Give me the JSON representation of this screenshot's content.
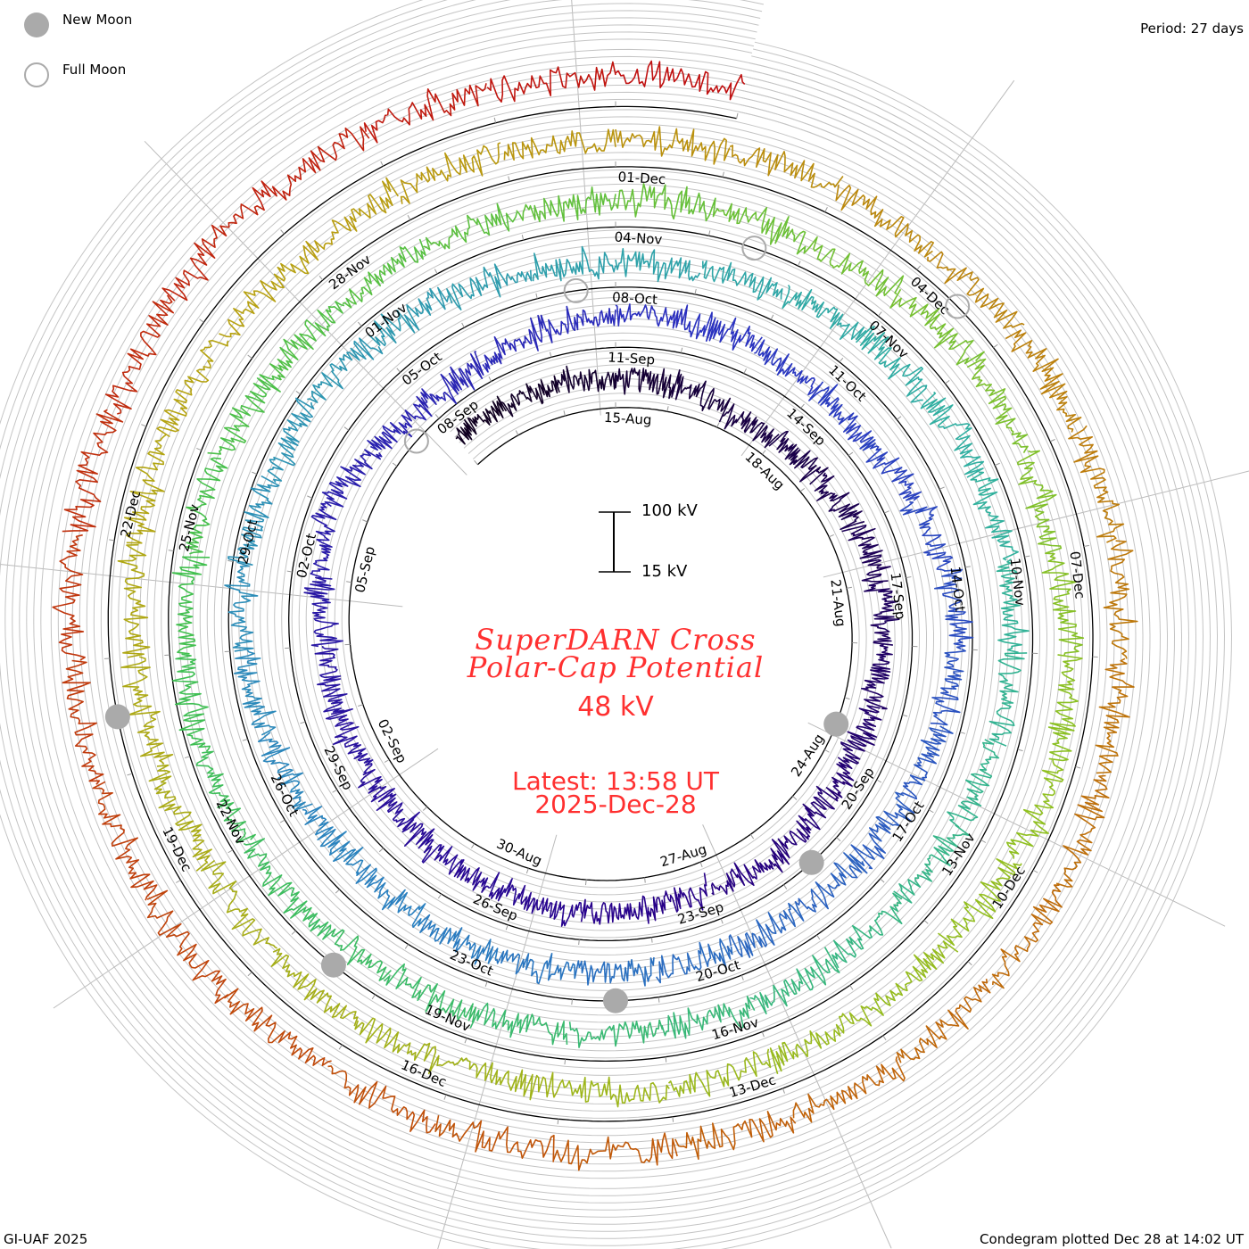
{
  "legend": {
    "new_moon": "New Moon",
    "full_moon": "Full Moon",
    "new_moon_color": "#aaaaaa",
    "full_moon_color": "#aaaaaa"
  },
  "period": "Period: 27 days",
  "footer_left": "GI-UAF 2025",
  "footer_right": "Condegram plotted Dec 28 at 14:02 UT",
  "center": {
    "title_line1": "SuperDARN Cross",
    "title_line2": "Polar-Cap Potential",
    "current_value": "48 kV",
    "latest_line1": "Latest: 13:58 UT",
    "latest_line2": "2025-Dec-28",
    "text_color": "#ff3030"
  },
  "scale_bar": {
    "top_label": "100 kV",
    "bottom_label": "15 kV"
  },
  "chart_data": {
    "type": "line",
    "subtype": "condegram-spiral",
    "title": "SuperDARN Cross Polar-Cap Potential",
    "units": "kV",
    "period_days": 27,
    "start_date": "2025-08-12",
    "end_date": "2025-12-28",
    "scale_kV": [
      15,
      100
    ],
    "daily_values_kV": [
      58,
      62,
      60,
      55,
      57,
      38,
      40,
      45,
      58,
      62,
      60,
      55,
      52,
      57,
      60,
      55,
      58,
      62,
      60,
      56,
      52,
      50,
      55,
      45,
      60,
      70,
      52,
      38,
      40,
      55,
      60,
      62,
      58,
      50,
      45,
      60,
      72,
      78,
      70,
      65,
      60,
      58,
      62,
      58,
      60,
      65,
      62,
      55,
      68,
      72,
      80,
      85,
      78,
      82,
      75,
      60,
      55,
      50,
      48,
      55,
      62,
      70,
      75,
      72,
      70,
      65,
      62,
      60,
      58,
      62,
      60,
      58,
      62,
      65,
      70,
      75,
      80,
      78,
      72,
      70,
      62,
      58,
      55,
      50,
      52,
      55,
      48,
      58,
      62,
      60,
      55,
      65,
      75,
      72,
      62,
      58,
      55,
      60,
      58,
      55,
      60,
      62,
      55,
      58,
      65,
      68,
      70,
      62,
      58,
      60,
      55,
      50,
      52,
      50,
      48,
      55,
      58,
      60,
      52,
      55,
      62,
      58,
      60,
      55,
      58,
      62,
      58,
      55,
      60,
      62,
      65,
      70,
      68,
      65,
      70,
      72,
      68,
      62,
      58
    ],
    "color_stops": [
      "#100020",
      "#28008a",
      "#2a30c0",
      "#2a80c0",
      "#30b0a0",
      "#40c050",
      "#90c020",
      "#b8a010",
      "#c06008",
      "#c01010"
    ],
    "date_labels": [
      "15-Aug",
      "18-Aug",
      "21-Aug",
      "24-Aug",
      "27-Aug",
      "30-Aug",
      "02-Sep",
      "05-Sep",
      "08-Sep",
      "11-Sep",
      "14-Sep",
      "17-Sep",
      "20-Sep",
      "23-Sep",
      "26-Sep",
      "29-Sep",
      "02-Oct",
      "05-Oct",
      "08-Oct",
      "11-Oct",
      "14-Oct",
      "17-Oct",
      "20-Oct",
      "23-Oct",
      "26-Oct",
      "29-Oct",
      "01-Nov",
      "04-Nov",
      "07-Nov",
      "10-Nov",
      "13-Nov",
      "16-Nov",
      "19-Nov",
      "22-Nov",
      "25-Nov",
      "28-Nov",
      "01-Dec",
      "04-Dec",
      "07-Dec",
      "10-Dec",
      "13-Dec",
      "16-Dec",
      "19-Dec",
      "22-Dec"
    ],
    "new_moons": [
      "2025-08-23",
      "2025-09-21",
      "2025-10-21",
      "2025-11-20",
      "2025-12-20"
    ],
    "full_moons": [
      "2025-09-07",
      "2025-10-07",
      "2025-11-05",
      "2025-12-04"
    ]
  }
}
